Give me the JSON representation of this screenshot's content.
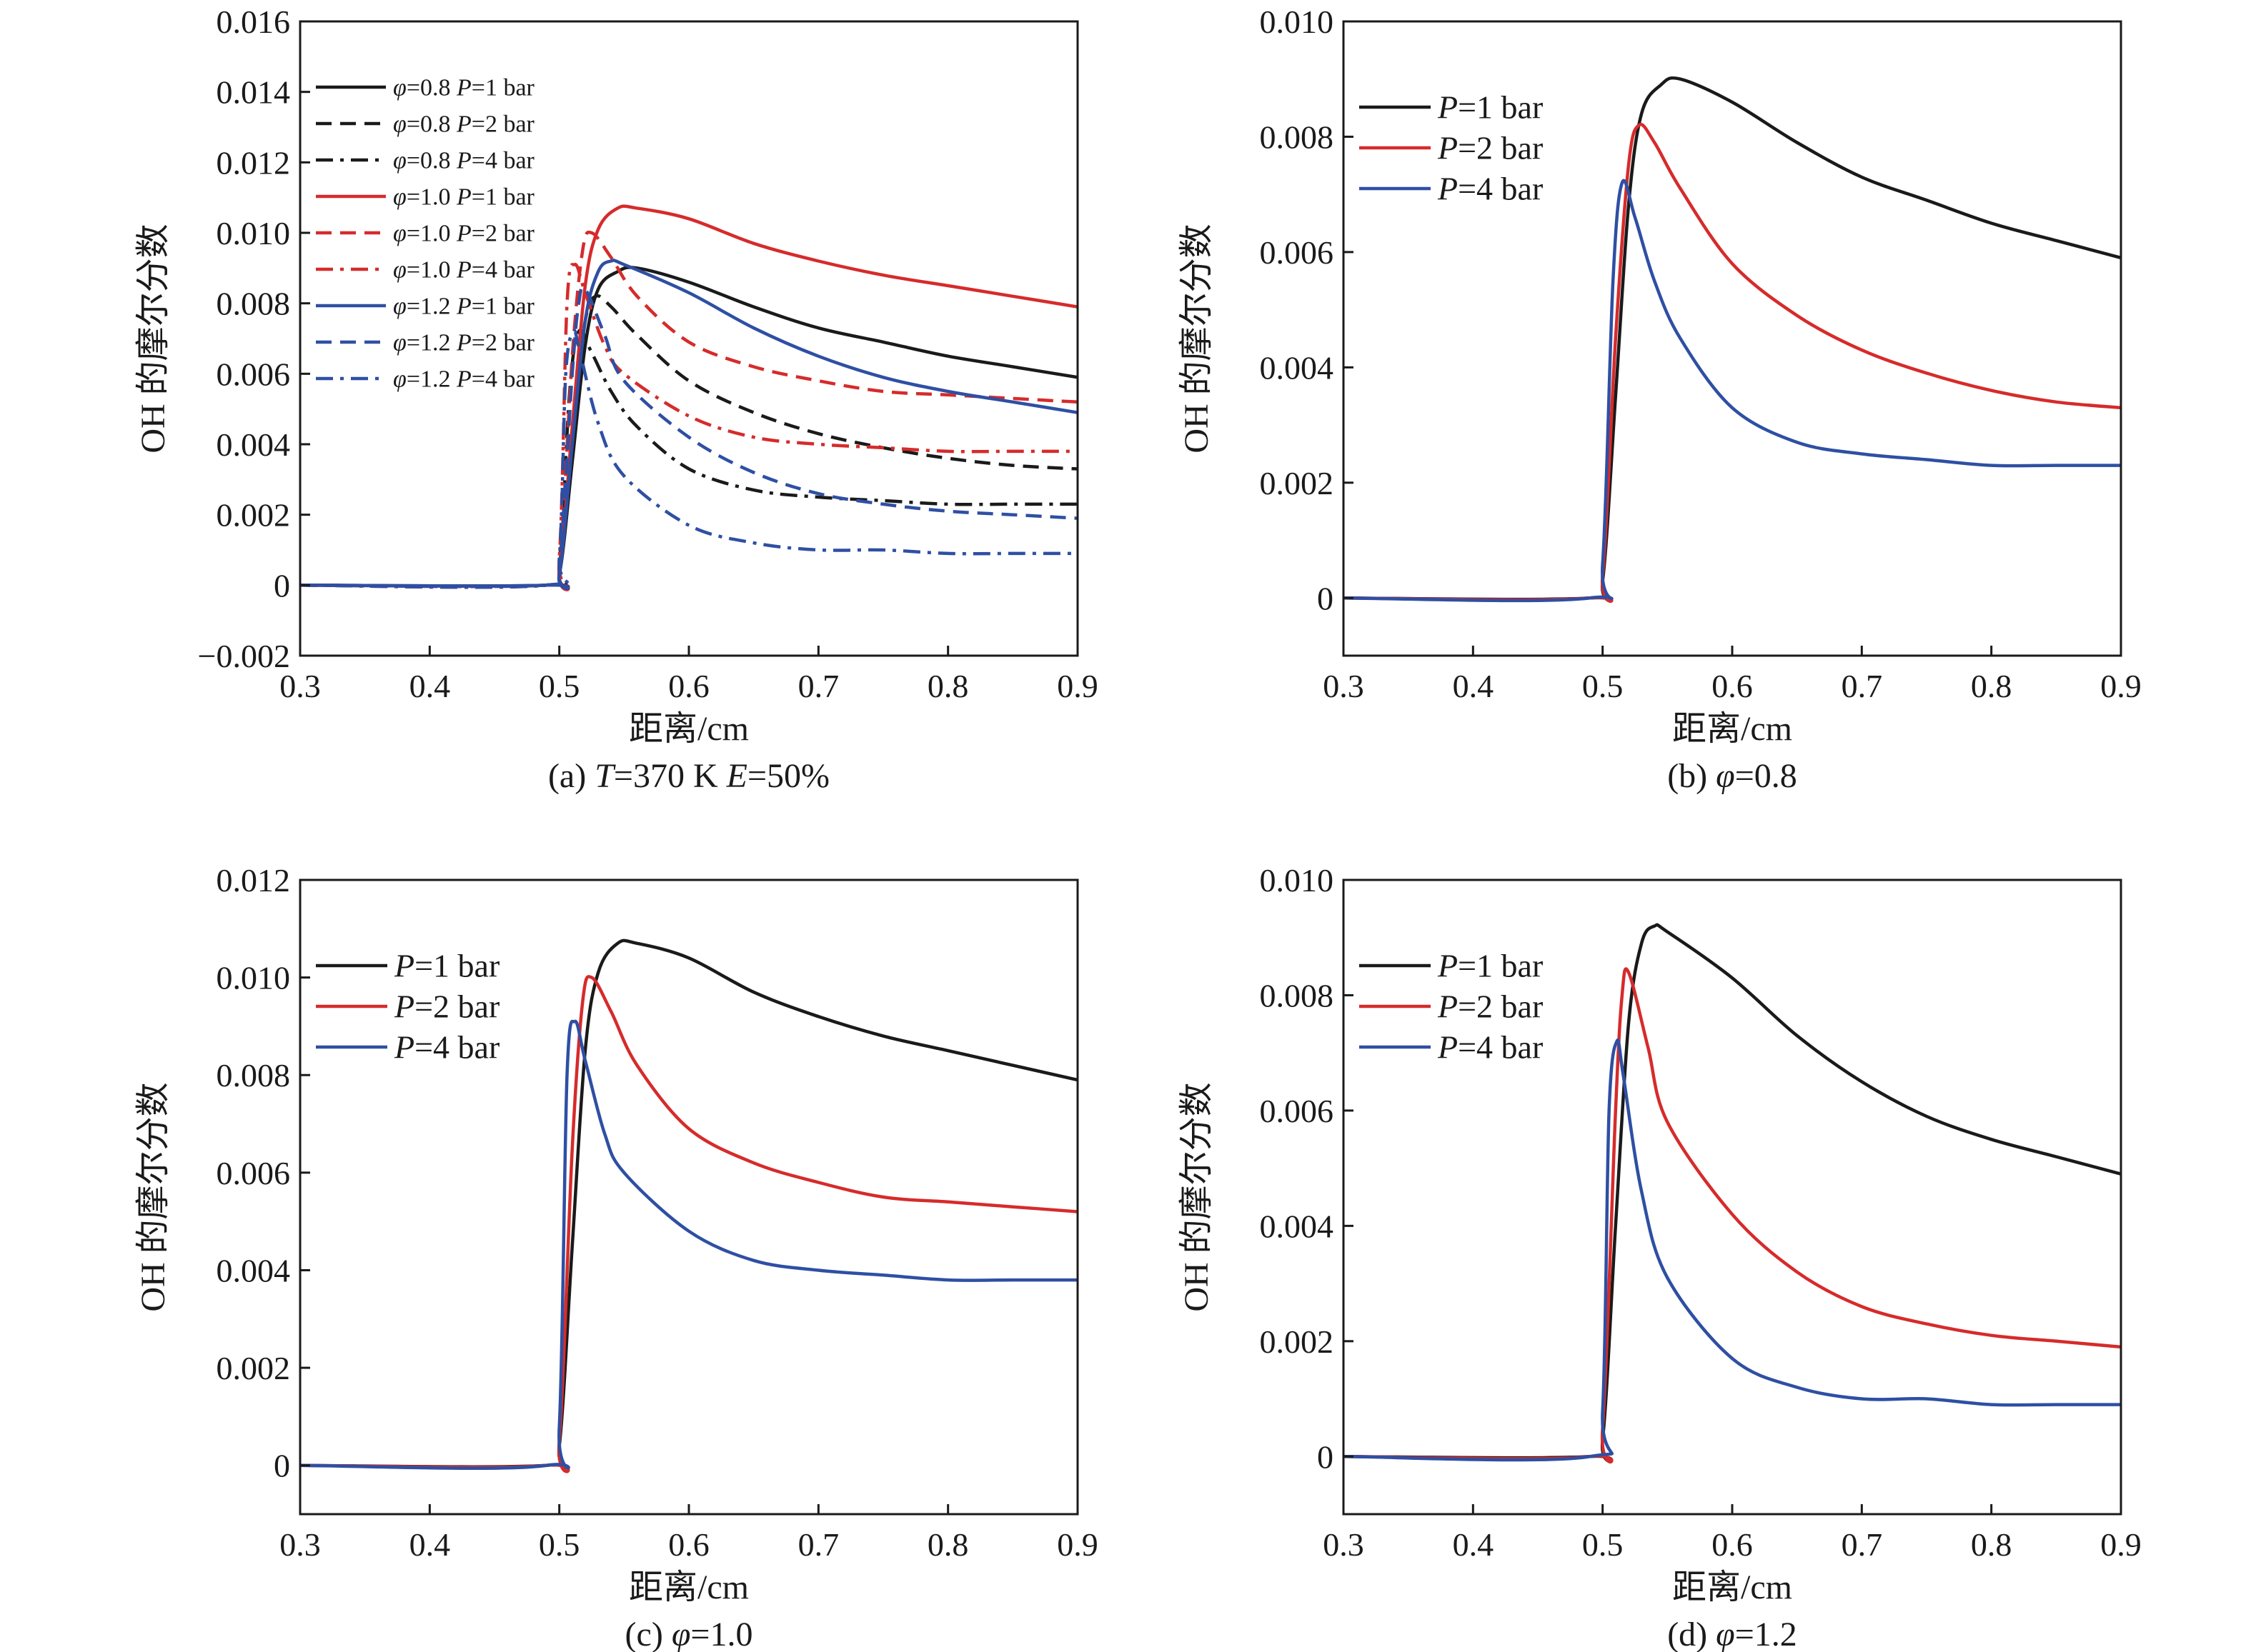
{
  "colors": {
    "black": "#1a1a1a",
    "red": "#d62b2b",
    "blue": "#2e4fa3"
  },
  "chart_data": [
    {
      "type": "line",
      "caption": "(a) T=370 K E=50%",
      "caption_parts": [
        {
          "t": "(a) ",
          "i": false
        },
        {
          "t": "T",
          "i": true
        },
        {
          "t": "=370 K ",
          "i": false
        },
        {
          "t": "E",
          "i": true
        },
        {
          "t": "=50%",
          "i": false
        }
      ],
      "xlabel": "距离/cm",
      "ylabel": "OH 的摩尔分数",
      "xlim": [
        0.3,
        0.9
      ],
      "ylim": [
        -0.002,
        0.016
      ],
      "xticks": [
        "0.3",
        "0.4",
        "0.5",
        "0.6",
        "0.7",
        "0.8",
        "0.9"
      ],
      "xtick_values": [
        0.3,
        0.4,
        0.5,
        0.6,
        0.7,
        0.8,
        0.9
      ],
      "yticks": [
        "−0.002",
        "0",
        "0.002",
        "0.004",
        "0.006",
        "0.008",
        "0.010",
        "0.012",
        "0.014",
        "0.016"
      ],
      "ytick_values": [
        -0.002,
        0,
        0.002,
        0.004,
        0.006,
        0.008,
        0.01,
        0.012,
        0.014,
        0.016
      ],
      "legend_placement": "top-left",
      "legend_style": "small",
      "grid": false,
      "series": [
        {
          "name": "φ=0.8 P=1 bar",
          "phi": "0.8",
          "p": "1",
          "color": "black",
          "dash": "solid",
          "x": [
            0.3,
            0.49,
            0.5,
            0.51,
            0.52,
            0.53,
            0.545,
            0.56,
            0.6,
            0.65,
            0.7,
            0.75,
            0.8,
            0.85,
            0.9
          ],
          "y": [
            0,
            0,
            0.0003,
            0.0035,
            0.0068,
            0.0084,
            0.0089,
            0.009,
            0.0086,
            0.0079,
            0.0073,
            0.0069,
            0.0065,
            0.0062,
            0.0059
          ]
        },
        {
          "name": "φ=0.8 P=2 bar",
          "phi": "0.8",
          "p": "2",
          "color": "black",
          "dash": "dash",
          "x": [
            0.3,
            0.49,
            0.5,
            0.51,
            0.52,
            0.528,
            0.54,
            0.56,
            0.6,
            0.65,
            0.7,
            0.75,
            0.8,
            0.85,
            0.9
          ],
          "y": [
            0,
            0,
            0.0004,
            0.0045,
            0.0075,
            0.0082,
            0.0079,
            0.0071,
            0.0058,
            0.0049,
            0.0043,
            0.0039,
            0.0036,
            0.0034,
            0.0033
          ]
        },
        {
          "name": "φ=0.8 P=4 bar",
          "phi": "0.8",
          "p": "4",
          "color": "black",
          "dash": "dashdot",
          "x": [
            0.3,
            0.49,
            0.5,
            0.508,
            0.515,
            0.525,
            0.54,
            0.56,
            0.6,
            0.65,
            0.7,
            0.75,
            0.8,
            0.85,
            0.9
          ],
          "y": [
            0,
            0,
            0.0006,
            0.0055,
            0.0072,
            0.0066,
            0.0055,
            0.0045,
            0.0033,
            0.0027,
            0.0025,
            0.0024,
            0.0023,
            0.0023,
            0.0023
          ]
        },
        {
          "name": "φ=1.0 P=1 bar",
          "phi": "1.0",
          "p": "1",
          "color": "red",
          "dash": "solid",
          "x": [
            0.3,
            0.49,
            0.5,
            0.51,
            0.52,
            0.53,
            0.545,
            0.56,
            0.6,
            0.65,
            0.7,
            0.75,
            0.8,
            0.85,
            0.9
          ],
          "y": [
            0,
            0,
            0.0004,
            0.0045,
            0.0085,
            0.0101,
            0.0107,
            0.0107,
            0.0104,
            0.0097,
            0.0092,
            0.0088,
            0.0085,
            0.0082,
            0.0079
          ]
        },
        {
          "name": "φ=1.0 P=2 bar",
          "phi": "1.0",
          "p": "2",
          "color": "red",
          "dash": "dash",
          "x": [
            0.3,
            0.49,
            0.5,
            0.51,
            0.518,
            0.525,
            0.54,
            0.56,
            0.6,
            0.65,
            0.7,
            0.75,
            0.8,
            0.85,
            0.9
          ],
          "y": [
            0,
            0,
            0.0005,
            0.0065,
            0.0095,
            0.01,
            0.0093,
            0.0082,
            0.0069,
            0.0062,
            0.0058,
            0.0055,
            0.0054,
            0.0053,
            0.0052
          ]
        },
        {
          "name": "φ=1.0 P=4 bar",
          "phi": "1.0",
          "p": "4",
          "color": "red",
          "dash": "dashdot",
          "x": [
            0.3,
            0.49,
            0.5,
            0.506,
            0.512,
            0.52,
            0.535,
            0.55,
            0.6,
            0.65,
            0.7,
            0.75,
            0.8,
            0.85,
            0.9
          ],
          "y": [
            0,
            0,
            0.0008,
            0.008,
            0.0091,
            0.0083,
            0.0068,
            0.006,
            0.0048,
            0.0042,
            0.004,
            0.0039,
            0.0038,
            0.0038,
            0.0038
          ]
        },
        {
          "name": "φ=1.2 P=1 bar",
          "phi": "1.2",
          "p": "1",
          "color": "blue",
          "dash": "solid",
          "x": [
            0.3,
            0.49,
            0.5,
            0.51,
            0.52,
            0.53,
            0.54,
            0.55,
            0.6,
            0.65,
            0.7,
            0.75,
            0.8,
            0.85,
            0.9
          ],
          "y": [
            0,
            0,
            0.0003,
            0.004,
            0.0075,
            0.0089,
            0.0092,
            0.0091,
            0.0083,
            0.0073,
            0.0065,
            0.0059,
            0.0055,
            0.0052,
            0.0049
          ]
        },
        {
          "name": "φ=1.2 P=2 bar",
          "phi": "1.2",
          "p": "2",
          "color": "blue",
          "dash": "dash",
          "x": [
            0.3,
            0.49,
            0.5,
            0.51,
            0.515,
            0.52,
            0.535,
            0.55,
            0.6,
            0.65,
            0.7,
            0.75,
            0.8,
            0.85,
            0.9
          ],
          "y": [
            0,
            0,
            0.0005,
            0.006,
            0.008,
            0.0084,
            0.0071,
            0.0058,
            0.0042,
            0.0032,
            0.0026,
            0.0023,
            0.0021,
            0.002,
            0.0019
          ]
        },
        {
          "name": "φ=1.2 P=4 bar",
          "phi": "1.2",
          "p": "4",
          "color": "blue",
          "dash": "dashdot",
          "x": [
            0.3,
            0.49,
            0.5,
            0.505,
            0.511,
            0.516,
            0.53,
            0.55,
            0.6,
            0.65,
            0.7,
            0.75,
            0.8,
            0.85,
            0.9
          ],
          "y": [
            0,
            0,
            0.0008,
            0.006,
            0.0072,
            0.0066,
            0.0046,
            0.0031,
            0.0017,
            0.0012,
            0.001,
            0.001,
            0.0009,
            0.0009,
            0.0009
          ]
        }
      ]
    },
    {
      "type": "line",
      "caption": "(b) φ=0.8",
      "caption_parts": [
        {
          "t": "(b) ",
          "i": false
        },
        {
          "t": "φ",
          "i": true
        },
        {
          "t": "=0.8",
          "i": false
        }
      ],
      "xlabel": "距离/cm",
      "ylabel": "OH 的摩尔分数",
      "xlim": [
        0.3,
        0.9
      ],
      "ylim": [
        -0.001,
        0.01
      ],
      "xticks": [
        "0.3",
        "0.4",
        "0.5",
        "0.6",
        "0.7",
        "0.8",
        "0.9"
      ],
      "xtick_values": [
        0.3,
        0.4,
        0.5,
        0.6,
        0.7,
        0.8,
        0.9
      ],
      "yticks": [
        "0",
        "0.002",
        "0.004",
        "0.006",
        "0.008",
        "0.010"
      ],
      "ytick_values": [
        0,
        0.002,
        0.004,
        0.006,
        0.008,
        0.01
      ],
      "legend_placement": "top-left",
      "legend_style": "large",
      "grid": false,
      "series": [
        {
          "name": "P=1 bar",
          "p": "1",
          "color": "black",
          "dash": "solid",
          "x": [
            0.3,
            0.49,
            0.5,
            0.51,
            0.52,
            0.53,
            0.545,
            0.56,
            0.6,
            0.65,
            0.7,
            0.75,
            0.8,
            0.85,
            0.9
          ],
          "y": [
            0,
            0,
            0.0003,
            0.0035,
            0.0068,
            0.0084,
            0.0089,
            0.009,
            0.0086,
            0.0079,
            0.0073,
            0.0069,
            0.0065,
            0.0062,
            0.0059
          ]
        },
        {
          "name": "P=2 bar",
          "p": "2",
          "color": "red",
          "dash": "solid",
          "x": [
            0.3,
            0.49,
            0.5,
            0.51,
            0.52,
            0.528,
            0.54,
            0.56,
            0.6,
            0.65,
            0.7,
            0.75,
            0.8,
            0.85,
            0.9
          ],
          "y": [
            0,
            0,
            0.0004,
            0.0045,
            0.0075,
            0.0082,
            0.0079,
            0.0071,
            0.0058,
            0.0049,
            0.0043,
            0.0039,
            0.0036,
            0.0034,
            0.0033
          ]
        },
        {
          "name": "P=4 bar",
          "p": "4",
          "color": "blue",
          "dash": "solid",
          "x": [
            0.3,
            0.49,
            0.5,
            0.508,
            0.515,
            0.525,
            0.54,
            0.56,
            0.6,
            0.65,
            0.7,
            0.75,
            0.8,
            0.85,
            0.9
          ],
          "y": [
            0,
            0,
            0.0006,
            0.0055,
            0.0072,
            0.0066,
            0.0055,
            0.0045,
            0.0033,
            0.0027,
            0.0025,
            0.0024,
            0.0023,
            0.0023,
            0.0023
          ]
        }
      ]
    },
    {
      "type": "line",
      "caption": "(c) φ=1.0",
      "caption_parts": [
        {
          "t": "(c) ",
          "i": false
        },
        {
          "t": "φ",
          "i": true
        },
        {
          "t": "=1.0",
          "i": false
        }
      ],
      "xlabel": "距离/cm",
      "ylabel": "OH 的摩尔分数",
      "xlim": [
        0.3,
        0.9
      ],
      "ylim": [
        -0.001,
        0.012
      ],
      "xticks": [
        "0.3",
        "0.4",
        "0.5",
        "0.6",
        "0.7",
        "0.8",
        "0.9"
      ],
      "xtick_values": [
        0.3,
        0.4,
        0.5,
        0.6,
        0.7,
        0.8,
        0.9
      ],
      "yticks": [
        "0",
        "0.002",
        "0.004",
        "0.006",
        "0.008",
        "0.010",
        "0.012"
      ],
      "ytick_values": [
        0,
        0.002,
        0.004,
        0.006,
        0.008,
        0.01,
        0.012
      ],
      "legend_placement": "top-left",
      "legend_style": "large",
      "grid": false,
      "series": [
        {
          "name": "P=1 bar",
          "p": "1",
          "color": "black",
          "dash": "solid",
          "x": [
            0.3,
            0.49,
            0.5,
            0.51,
            0.52,
            0.53,
            0.545,
            0.56,
            0.6,
            0.65,
            0.7,
            0.75,
            0.8,
            0.85,
            0.9
          ],
          "y": [
            0,
            0,
            0.0004,
            0.0045,
            0.0085,
            0.0101,
            0.0107,
            0.0107,
            0.0104,
            0.0097,
            0.0092,
            0.0088,
            0.0085,
            0.0082,
            0.0079
          ]
        },
        {
          "name": "P=2 bar",
          "p": "2",
          "color": "red",
          "dash": "solid",
          "x": [
            0.3,
            0.49,
            0.5,
            0.51,
            0.518,
            0.525,
            0.54,
            0.56,
            0.6,
            0.65,
            0.7,
            0.75,
            0.8,
            0.85,
            0.9
          ],
          "y": [
            0,
            0,
            0.0005,
            0.0065,
            0.0095,
            0.01,
            0.0093,
            0.0082,
            0.0069,
            0.0062,
            0.0058,
            0.0055,
            0.0054,
            0.0053,
            0.0052
          ]
        },
        {
          "name": "P=4 bar",
          "p": "4",
          "color": "blue",
          "dash": "solid",
          "x": [
            0.3,
            0.49,
            0.5,
            0.506,
            0.512,
            0.52,
            0.535,
            0.55,
            0.6,
            0.65,
            0.7,
            0.75,
            0.8,
            0.85,
            0.9
          ],
          "y": [
            0,
            0,
            0.0008,
            0.008,
            0.0091,
            0.0083,
            0.0068,
            0.006,
            0.0048,
            0.0042,
            0.004,
            0.0039,
            0.0038,
            0.0038,
            0.0038
          ]
        }
      ]
    },
    {
      "type": "line",
      "caption": "(d) φ=1.2",
      "caption_parts": [
        {
          "t": "(d) ",
          "i": false
        },
        {
          "t": "φ",
          "i": true
        },
        {
          "t": "=1.2",
          "i": false
        }
      ],
      "xlabel": "距离/cm",
      "ylabel": "OH 的摩尔分数",
      "xlim": [
        0.3,
        0.9
      ],
      "ylim": [
        -0.001,
        0.01
      ],
      "xticks": [
        "0.3",
        "0.4",
        "0.5",
        "0.6",
        "0.7",
        "0.8",
        "0.9"
      ],
      "xtick_values": [
        0.3,
        0.4,
        0.5,
        0.6,
        0.7,
        0.8,
        0.9
      ],
      "yticks": [
        "0",
        "0.002",
        "0.004",
        "0.006",
        "0.008",
        "0.010"
      ],
      "ytick_values": [
        0,
        0.002,
        0.004,
        0.006,
        0.008,
        0.01
      ],
      "legend_placement": "top-left",
      "legend_style": "large",
      "grid": false,
      "series": [
        {
          "name": "P=1 bar",
          "p": "1",
          "color": "black",
          "dash": "solid",
          "x": [
            0.3,
            0.49,
            0.5,
            0.51,
            0.52,
            0.53,
            0.54,
            0.55,
            0.6,
            0.65,
            0.7,
            0.75,
            0.8,
            0.85,
            0.9
          ],
          "y": [
            0,
            0,
            0.0003,
            0.004,
            0.0075,
            0.0089,
            0.0092,
            0.0091,
            0.0083,
            0.0073,
            0.0065,
            0.0059,
            0.0055,
            0.0052,
            0.0049
          ]
        },
        {
          "name": "P=2 bar",
          "p": "2",
          "color": "red",
          "dash": "solid",
          "x": [
            0.3,
            0.49,
            0.5,
            0.51,
            0.515,
            0.52,
            0.535,
            0.55,
            0.6,
            0.65,
            0.7,
            0.75,
            0.8,
            0.85,
            0.9
          ],
          "y": [
            0,
            0,
            0.0005,
            0.006,
            0.008,
            0.0084,
            0.0071,
            0.0058,
            0.0042,
            0.0032,
            0.0026,
            0.0023,
            0.0021,
            0.002,
            0.0019
          ]
        },
        {
          "name": "P=4 bar",
          "p": "4",
          "color": "blue",
          "dash": "solid",
          "x": [
            0.3,
            0.49,
            0.5,
            0.505,
            0.511,
            0.516,
            0.53,
            0.55,
            0.6,
            0.65,
            0.7,
            0.75,
            0.8,
            0.85,
            0.9
          ],
          "y": [
            0,
            0,
            0.0008,
            0.006,
            0.0072,
            0.0066,
            0.0046,
            0.0031,
            0.0017,
            0.0012,
            0.001,
            0.001,
            0.0009,
            0.0009,
            0.0009
          ]
        }
      ]
    }
  ]
}
